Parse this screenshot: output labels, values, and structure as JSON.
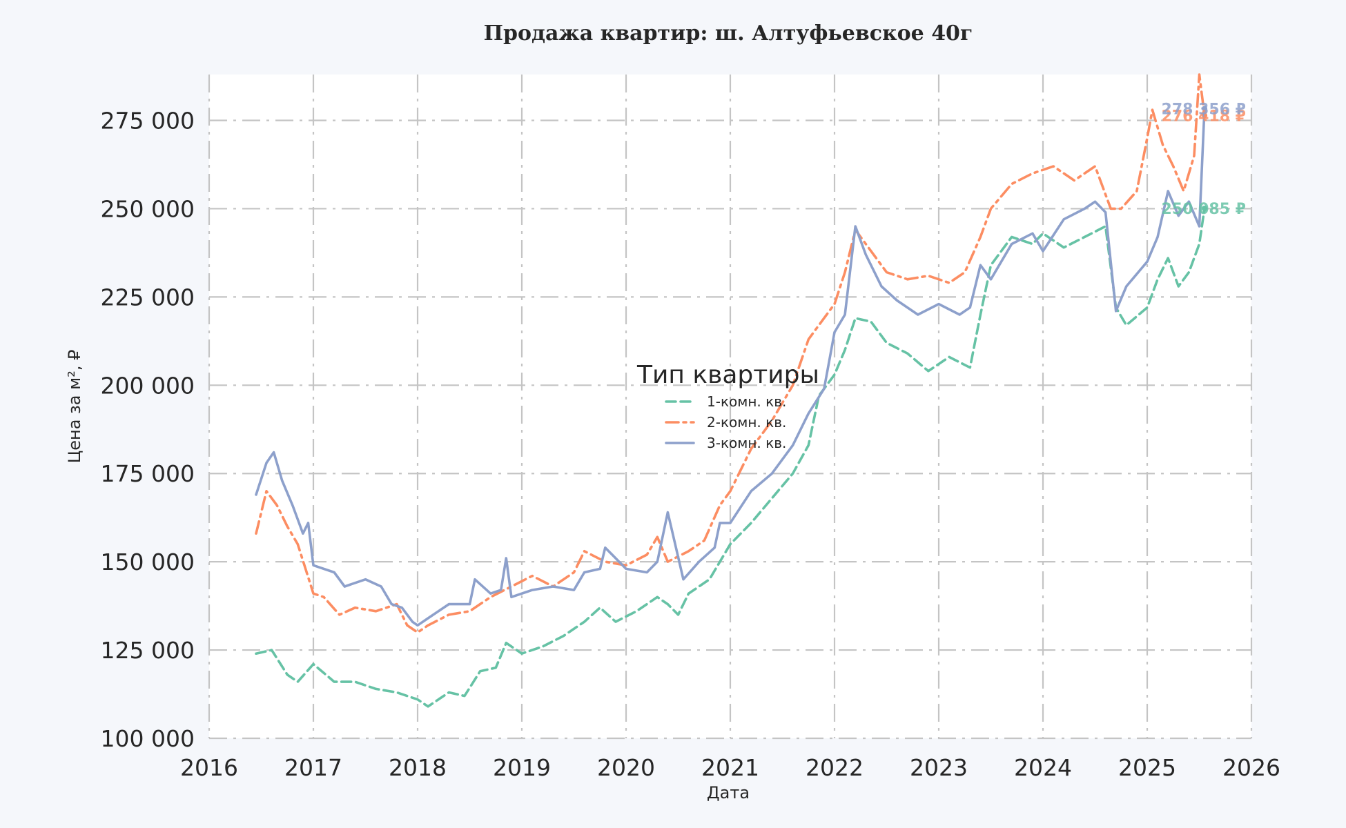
{
  "chart_data": {
    "type": "line",
    "title": "Продажа квартир: ш. Алтуфьевское 40г",
    "xlabel": "Дата",
    "ylabel": "Цена за м², ₽",
    "xlim": [
      2016,
      2026
    ],
    "ylim": [
      100000,
      288000
    ],
    "x_ticks": [
      "2016",
      "2017",
      "2018",
      "2019",
      "2020",
      "2021",
      "2022",
      "2023",
      "2024",
      "2025",
      "2026"
    ],
    "y_ticks": [
      "100 000",
      "125 000",
      "150 000",
      "175 000",
      "200 000",
      "225 000",
      "250 000",
      "275 000"
    ],
    "y_tick_values": [
      100000,
      125000,
      150000,
      175000,
      200000,
      225000,
      250000,
      275000
    ],
    "grid": true,
    "legend": {
      "title": "Тип квартиры",
      "placement": "center"
    },
    "series": [
      {
        "name": "1-комн. кв.",
        "color": "#66c2a5",
        "dash": "dashed",
        "end_label": "250 085 ₽",
        "x": [
          2016.45,
          2016.6,
          2016.75,
          2016.85,
          2017.0,
          2017.2,
          2017.4,
          2017.6,
          2017.8,
          2017.9,
          2018.0,
          2018.1,
          2018.3,
          2018.45,
          2018.6,
          2018.75,
          2018.85,
          2019.0,
          2019.2,
          2019.4,
          2019.6,
          2019.75,
          2019.9,
          2020.1,
          2020.3,
          2020.4,
          2020.5,
          2020.6,
          2020.8,
          2021.0,
          2021.2,
          2021.4,
          2021.6,
          2021.75,
          2021.85,
          2022.0,
          2022.1,
          2022.2,
          2022.35,
          2022.5,
          2022.7,
          2022.9,
          2023.1,
          2023.3,
          2023.4,
          2023.5,
          2023.7,
          2023.9,
          2024.0,
          2024.2,
          2024.4,
          2024.6,
          2024.7,
          2024.8,
          2025.0,
          2025.1,
          2025.2,
          2025.3,
          2025.4,
          2025.5,
          2025.55
        ],
        "values": [
          124000,
          125000,
          118000,
          116000,
          121000,
          116000,
          116000,
          114000,
          113000,
          112000,
          111000,
          109000,
          113000,
          112000,
          119000,
          120000,
          127000,
          124000,
          126000,
          129000,
          133000,
          137000,
          133000,
          136000,
          140000,
          138000,
          135000,
          141000,
          145000,
          155000,
          161000,
          168000,
          175000,
          183000,
          197000,
          203000,
          210000,
          219000,
          218000,
          212000,
          209000,
          204000,
          208000,
          205000,
          220000,
          234000,
          242000,
          240000,
          243000,
          239000,
          242000,
          245000,
          222000,
          217000,
          222000,
          230000,
          236000,
          228000,
          232000,
          240000,
          250085
        ]
      },
      {
        "name": "2-комн. кв.",
        "color": "#fc8d62",
        "dash": "dashdot",
        "end_label": "276 418 ₽",
        "x": [
          2016.45,
          2016.55,
          2016.65,
          2016.75,
          2016.85,
          2017.0,
          2017.1,
          2017.25,
          2017.4,
          2017.6,
          2017.8,
          2017.9,
          2018.0,
          2018.1,
          2018.3,
          2018.5,
          2018.7,
          2018.9,
          2019.1,
          2019.3,
          2019.5,
          2019.6,
          2019.8,
          2020.0,
          2020.2,
          2020.3,
          2020.4,
          2020.6,
          2020.75,
          2020.9,
          2021.0,
          2021.2,
          2021.4,
          2021.6,
          2021.75,
          2021.85,
          2022.0,
          2022.1,
          2022.2,
          2022.3,
          2022.5,
          2022.7,
          2022.9,
          2023.1,
          2023.25,
          2023.4,
          2023.5,
          2023.7,
          2023.9,
          2024.1,
          2024.3,
          2024.5,
          2024.65,
          2024.75,
          2024.9,
          2025.0,
          2025.05,
          2025.15,
          2025.25,
          2025.35,
          2025.45,
          2025.5,
          2025.55
        ],
        "values": [
          158000,
          170000,
          166000,
          160000,
          155000,
          141000,
          140000,
          135000,
          137000,
          136000,
          138000,
          132000,
          130000,
          132000,
          135000,
          136000,
          140000,
          143000,
          146000,
          143000,
          147000,
          153000,
          150000,
          149000,
          152000,
          157000,
          150000,
          153000,
          156000,
          166000,
          170000,
          182000,
          190000,
          200000,
          213000,
          217000,
          223000,
          232000,
          244000,
          240000,
          232000,
          230000,
          231000,
          229000,
          232000,
          242000,
          250000,
          257000,
          260000,
          262000,
          258000,
          262000,
          250000,
          250000,
          255000,
          270000,
          278000,
          268000,
          262000,
          255000,
          265000,
          288000,
          276418
        ]
      },
      {
        "name": "3-комн. кв.",
        "color": "#8da0cb",
        "dash": "solid",
        "end_label": "278 356 ₽",
        "x": [
          2016.45,
          2016.55,
          2016.62,
          2016.7,
          2016.8,
          2016.9,
          2016.95,
          2017.0,
          2017.2,
          2017.3,
          2017.5,
          2017.65,
          2017.75,
          2017.85,
          2017.95,
          2018.0,
          2018.1,
          2018.3,
          2018.5,
          2018.55,
          2018.7,
          2018.8,
          2018.85,
          2018.9,
          2019.1,
          2019.3,
          2019.5,
          2019.6,
          2019.75,
          2019.8,
          2020.0,
          2020.2,
          2020.3,
          2020.4,
          2020.55,
          2020.7,
          2020.85,
          2020.9,
          2021.0,
          2021.2,
          2021.4,
          2021.6,
          2021.75,
          2021.9,
          2022.0,
          2022.1,
          2022.2,
          2022.3,
          2022.45,
          2022.6,
          2022.8,
          2023.0,
          2023.2,
          2023.3,
          2023.4,
          2023.5,
          2023.7,
          2023.9,
          2024.0,
          2024.2,
          2024.4,
          2024.5,
          2024.6,
          2024.7,
          2024.8,
          2025.0,
          2025.1,
          2025.2,
          2025.3,
          2025.4,
          2025.5,
          2025.55
        ],
        "values": [
          169000,
          178000,
          181000,
          173000,
          166000,
          158000,
          161000,
          149000,
          147000,
          143000,
          145000,
          143000,
          138000,
          137000,
          133000,
          132000,
          134000,
          138000,
          138000,
          145000,
          141000,
          142000,
          151000,
          140000,
          142000,
          143000,
          142000,
          147000,
          148000,
          154000,
          148000,
          147000,
          150000,
          164000,
          145000,
          150000,
          154000,
          161000,
          161000,
          170000,
          175000,
          183000,
          192000,
          199000,
          215000,
          220000,
          245000,
          237000,
          228000,
          224000,
          220000,
          223000,
          220000,
          222000,
          234000,
          230000,
          240000,
          243000,
          238000,
          247000,
          250000,
          252000,
          249000,
          221000,
          228000,
          235000,
          242000,
          255000,
          248000,
          252000,
          245000,
          278356
        ]
      }
    ]
  }
}
